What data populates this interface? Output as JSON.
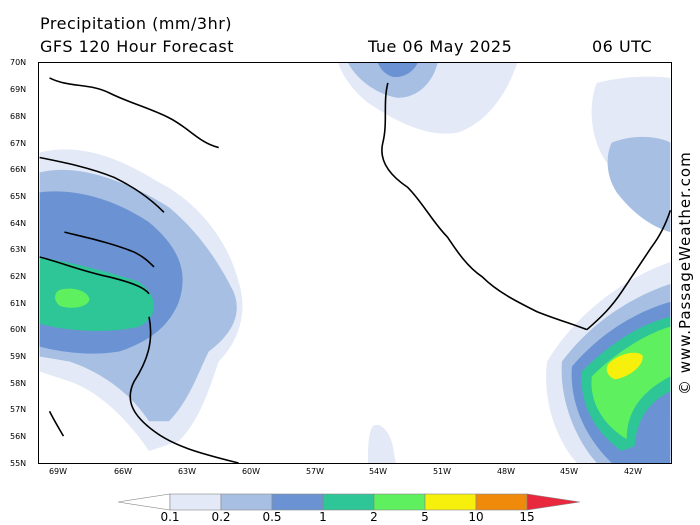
{
  "header": {
    "title": "Precipitation (mm/3hr)",
    "subtitle": "GFS 120 Hour Forecast",
    "date": "Tue 06 May 2025",
    "time": "06 UTC"
  },
  "credit": "© www.PassageWeather.com",
  "lat_labels": [
    "70N",
    "69N",
    "68N",
    "67N",
    "66N",
    "65N",
    "64N",
    "63N",
    "62N",
    "61N",
    "60N",
    "59N",
    "58N",
    "57N",
    "56N",
    "55N"
  ],
  "lon_labels": [
    "69W",
    "66W",
    "63W",
    "60W",
    "57W",
    "54W",
    "51W",
    "48W",
    "45W",
    "42W"
  ],
  "legend": {
    "labels": [
      "0.1",
      "0.2",
      "0.5",
      "1",
      "2",
      "5",
      "10",
      "15"
    ],
    "colors": [
      "#ffffff",
      "#e3e9f6",
      "#a6bfe3",
      "#6b93d3",
      "#2ec597",
      "#5ef05e",
      "#f7f00c",
      "#f08a0a",
      "#e8283c"
    ]
  },
  "precip_colors": {
    "light": "#e3e9f6",
    "moderate": "#a6bfe3",
    "medium": "#6b93d3",
    "teal": "#2ec597",
    "green": "#5ef05e",
    "yellow": "#f7f00c"
  }
}
